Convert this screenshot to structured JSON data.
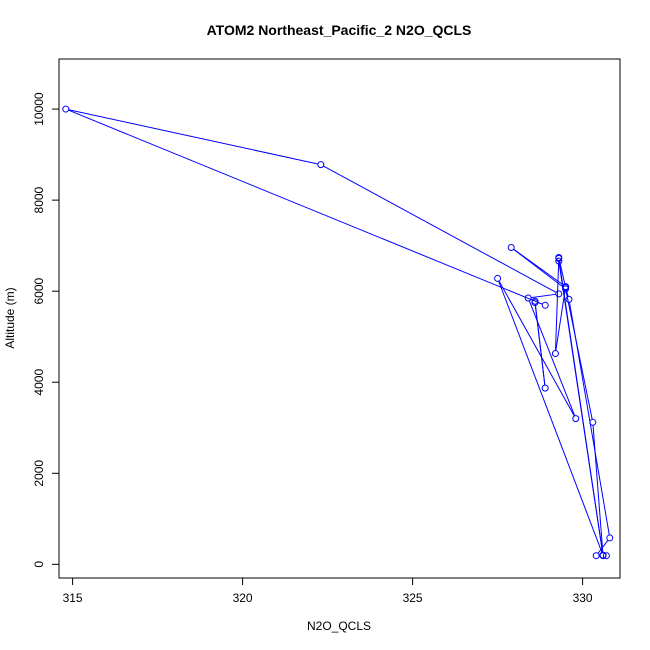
{
  "chart_data": {
    "type": "line",
    "title": "ATOM2 Northeast_Pacific_2 N2O_QCLS",
    "xlabel": "N2O_QCLS",
    "ylabel": "Altitude (m)",
    "xlim": [
      314.6,
      331.1
    ],
    "ylim": [
      -300,
      11100
    ],
    "x_ticks": [
      315,
      320,
      325,
      330
    ],
    "y_ticks": [
      0,
      2000,
      4000,
      6000,
      8000,
      10000
    ],
    "grid": false,
    "color": "#0000ff",
    "points": [
      {
        "x": 330.7,
        "y": 190
      },
      {
        "x": 330.6,
        "y": 190
      },
      {
        "x": 330.4,
        "y": 190
      },
      {
        "x": 330.8,
        "y": 580
      },
      {
        "x": 329.6,
        "y": 5820
      },
      {
        "x": 329.5,
        "y": 6080
      },
      {
        "x": 329.3,
        "y": 6740
      },
      {
        "x": 329.3,
        "y": 6660
      },
      {
        "x": 330.6,
        "y": 200
      },
      {
        "x": 330.3,
        "y": 3120
      },
      {
        "x": 329.5,
        "y": 6050
      },
      {
        "x": 327.9,
        "y": 6960
      },
      {
        "x": 329.5,
        "y": 6100
      },
      {
        "x": 329.2,
        "y": 4630
      },
      {
        "x": 329.3,
        "y": 6720
      },
      {
        "x": 330.6,
        "y": 200
      },
      {
        "x": 327.5,
        "y": 6280
      },
      {
        "x": 329.8,
        "y": 3200
      },
      {
        "x": 328.4,
        "y": 5850
      },
      {
        "x": 329.3,
        "y": 5940
      },
      {
        "x": 322.3,
        "y": 8780
      },
      {
        "x": 314.8,
        "y": 10000
      },
      {
        "x": 328.9,
        "y": 5690
      },
      {
        "x": 328.6,
        "y": 5780
      },
      {
        "x": 328.9,
        "y": 3870
      },
      {
        "x": 328.6,
        "y": 5750
      }
    ]
  }
}
